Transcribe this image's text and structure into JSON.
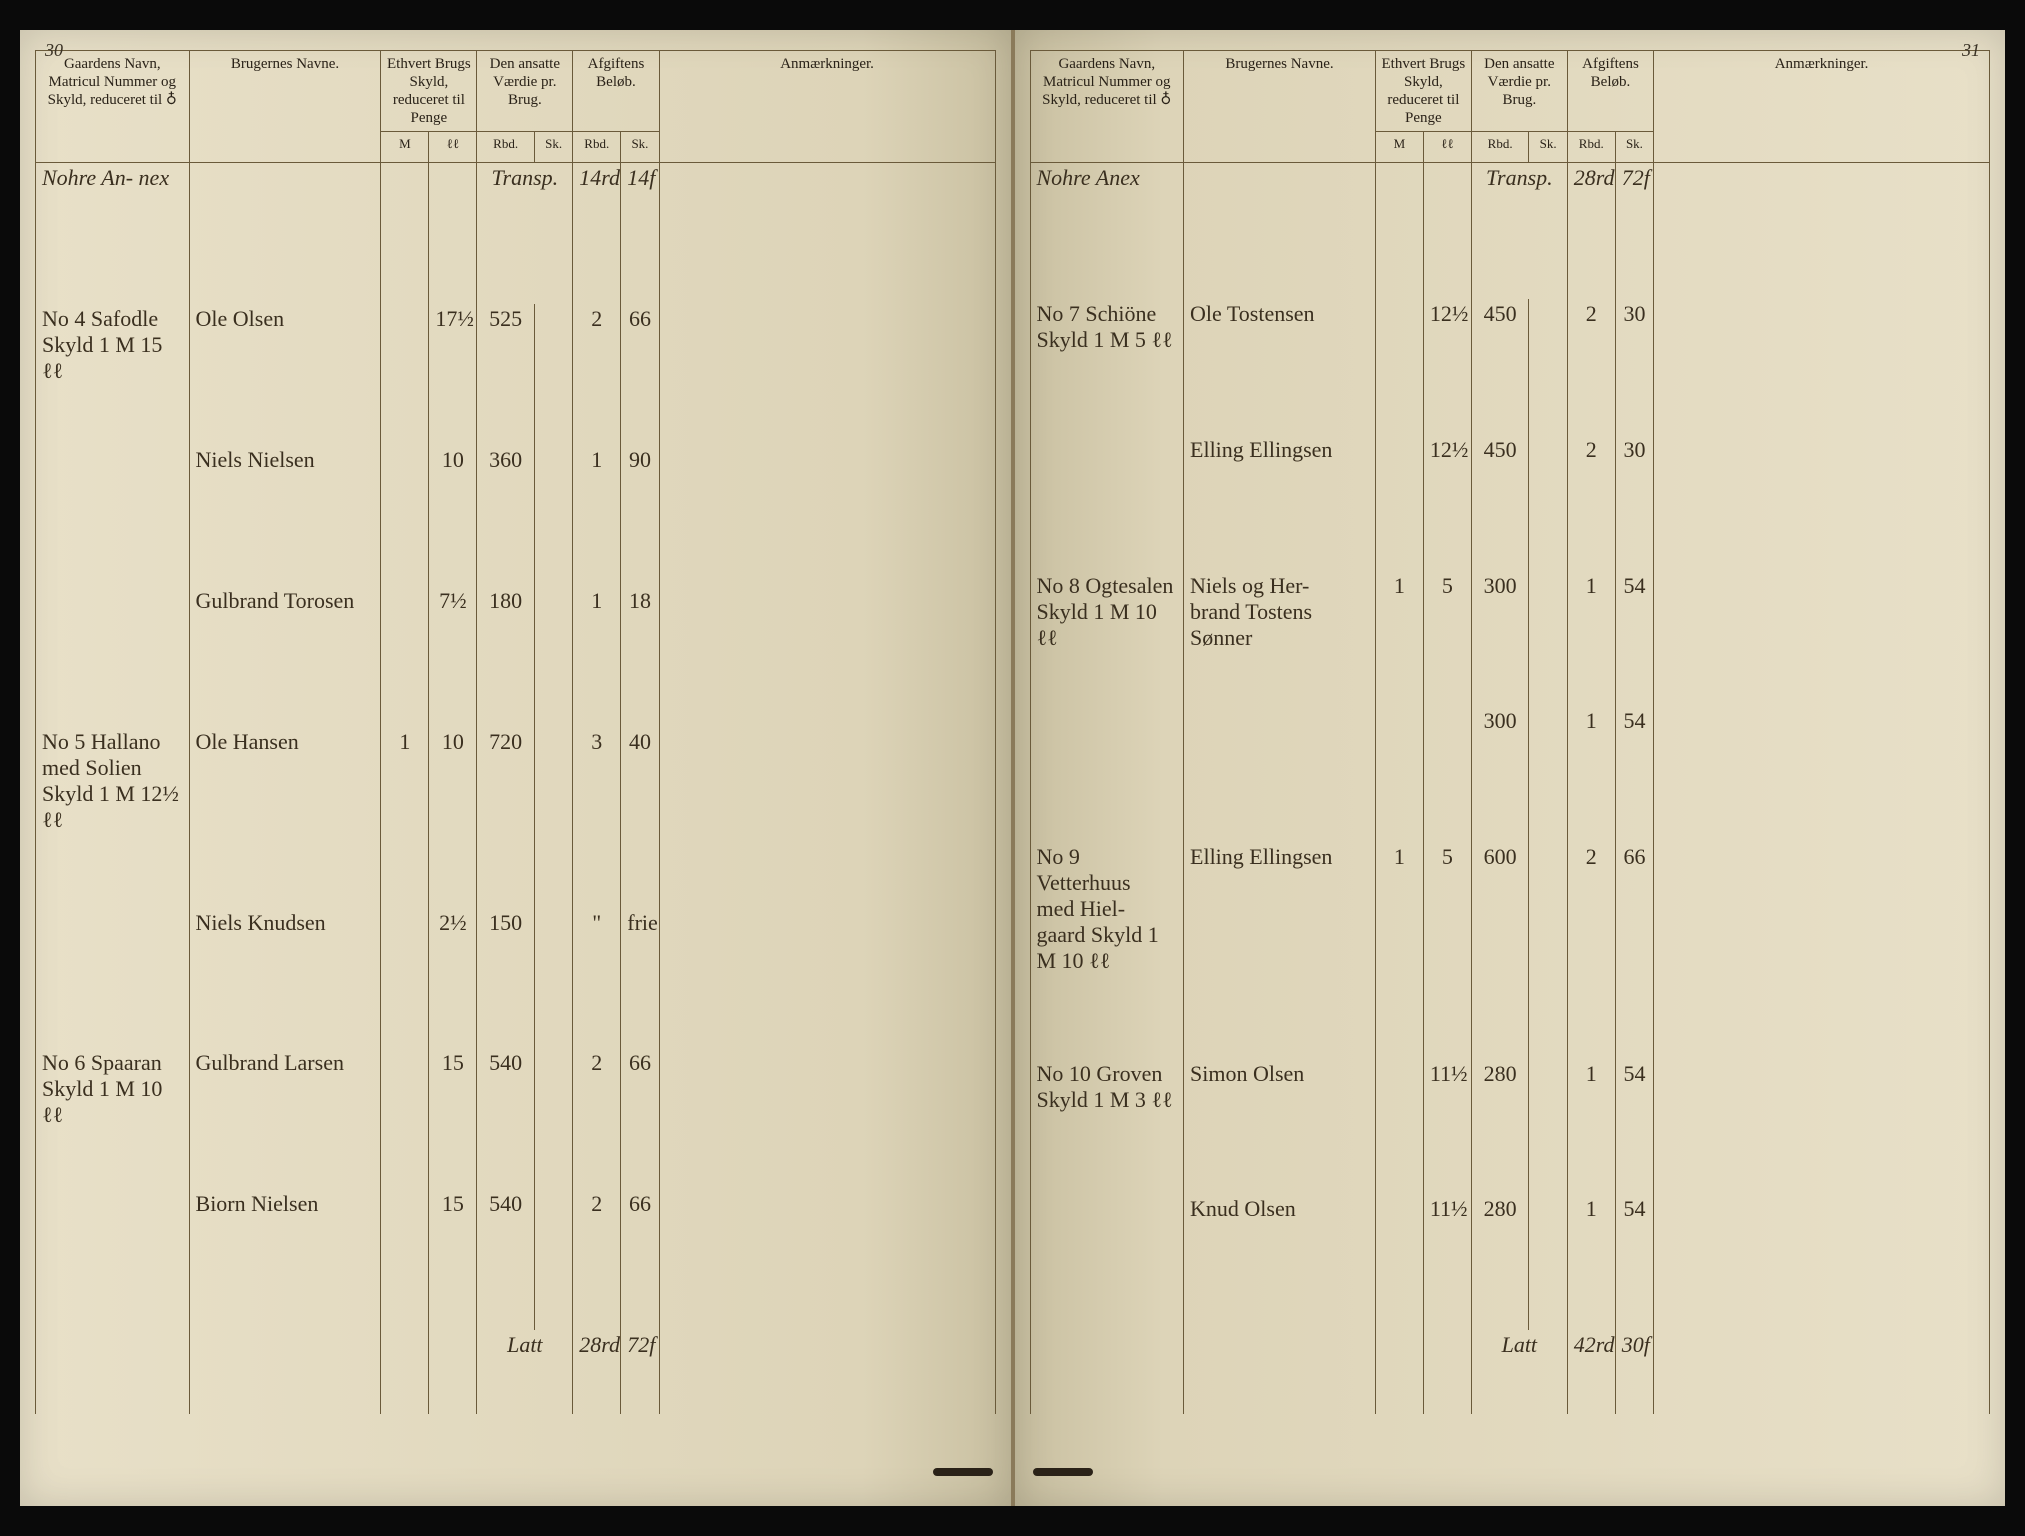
{
  "colors": {
    "paper": "#e8e0c8",
    "ink": "#3a2f1f",
    "rule": "#6a5a3a",
    "background": "#1a1a1a"
  },
  "left_page": {
    "number": "30",
    "headers": {
      "gaard": "Gaardens Navn, Matricul Nummer og Skyld, reduceret til ♁",
      "bruger": "Brugernes Navne.",
      "skyld": "Ethvert Brugs Skyld, reduceret til Penge",
      "vaerdie": "Den ansatte Værdie pr. Brug.",
      "afgift": "Afgiftens Beløb.",
      "anm": "Anmærkninger.",
      "sub_m": "M",
      "sub_ll": "ℓℓ",
      "sub_rbd": "Rbd.",
      "sub_sk": "Sk."
    },
    "annex": "Nohre An-\nnex",
    "transport_label": "Transp.",
    "transport_val1": "14rd",
    "transport_val2": "14f",
    "rows": [
      {
        "gaard": "No 4 Safodle\nSkyld 1 M 15 ℓℓ",
        "bruger": "Ole Olsen",
        "sk1": "",
        "sk2": "17½",
        "v1": "525",
        "v2": "",
        "a1": "2",
        "a2": "66",
        "anm": ""
      },
      {
        "gaard": "",
        "bruger": "Niels Nielsen",
        "sk1": "",
        "sk2": "10",
        "v1": "360",
        "v2": "",
        "a1": "1",
        "a2": "90",
        "anm": ""
      },
      {
        "gaard": "",
        "bruger": "Gulbrand Torosen",
        "sk1": "",
        "sk2": "7½",
        "v1": "180",
        "v2": "",
        "a1": "1",
        "a2": "18",
        "anm": ""
      },
      {
        "gaard": "No 5 Hallano\nmed Solien\nSkyld 1 M 12½ ℓℓ",
        "bruger": "Ole Hansen",
        "sk1": "1",
        "sk2": "10",
        "v1": "720",
        "v2": "",
        "a1": "3",
        "a2": "40",
        "anm": ""
      },
      {
        "gaard": "",
        "bruger": "Niels Knudsen",
        "sk1": "",
        "sk2": "2½",
        "v1": "150",
        "v2": "",
        "a1": "\"",
        "a2": "frie",
        "anm": ""
      },
      {
        "gaard": "No 6 Spaaran\nSkyld 1 M 10 ℓℓ",
        "bruger": "Gulbrand Larsen",
        "sk1": "",
        "sk2": "15",
        "v1": "540",
        "v2": "",
        "a1": "2",
        "a2": "66",
        "anm": ""
      },
      {
        "gaard": "",
        "bruger": "Biorn Nielsen",
        "sk1": "",
        "sk2": "15",
        "v1": "540",
        "v2": "",
        "a1": "2",
        "a2": "66",
        "anm": ""
      }
    ],
    "total_label": "Latt",
    "total_val1": "28rd",
    "total_val2": "72f"
  },
  "right_page": {
    "number": "31",
    "headers": {
      "gaard": "Gaardens Navn, Matricul Nummer og Skyld, reduceret til ♁",
      "bruger": "Brugernes Navne.",
      "skyld": "Ethvert Brugs Skyld, reduceret til Penge",
      "vaerdie": "Den ansatte Værdie pr. Brug.",
      "afgift": "Afgiftens Beløb.",
      "anm": "Anmærkninger.",
      "sub_m": "M",
      "sub_ll": "ℓℓ",
      "sub_rbd": "Rbd.",
      "sub_sk": "Sk."
    },
    "annex": "Nohre Anex",
    "transport_label": "Transp.",
    "transport_val1": "28rd",
    "transport_val2": "72f",
    "rows": [
      {
        "gaard": "No 7 Schiöne\nSkyld 1 M 5 ℓℓ",
        "bruger": "Ole Tostensen",
        "sk1": "",
        "sk2": "12½",
        "v1": "450",
        "v2": "",
        "a1": "2",
        "a2": "30",
        "anm": ""
      },
      {
        "gaard": "",
        "bruger": "Elling Ellingsen",
        "sk1": "",
        "sk2": "12½",
        "v1": "450",
        "v2": "",
        "a1": "2",
        "a2": "30",
        "anm": ""
      },
      {
        "gaard": "No 8 Ogtesalen\nSkyld 1 M 10 ℓℓ",
        "bruger": "Niels og Her-\nbrand Tostens\nSønner",
        "sk1": "1",
        "sk2": "5",
        "v1": "300",
        "v2": "",
        "a1": "1",
        "a2": "54",
        "anm": ""
      },
      {
        "gaard": "",
        "bruger": "",
        "sk1": "",
        "sk2": "",
        "v1": "300",
        "v2": "",
        "a1": "1",
        "a2": "54",
        "anm": ""
      },
      {
        "gaard": "No 9 Vetterhuus\nmed Hiel-\ngaard Skyld 1 M 10 ℓℓ",
        "bruger": "Elling Ellingsen",
        "sk1": "1",
        "sk2": "5",
        "v1": "600",
        "v2": "",
        "a1": "2",
        "a2": "66",
        "anm": ""
      },
      {
        "gaard": "No 10 Groven\nSkyld 1 M 3 ℓℓ",
        "bruger": "Simon Olsen",
        "sk1": "",
        "sk2": "11½",
        "v1": "280",
        "v2": "",
        "a1": "1",
        "a2": "54",
        "anm": ""
      },
      {
        "gaard": "",
        "bruger": "Knud Olsen",
        "sk1": "",
        "sk2": "11½",
        "v1": "280",
        "v2": "",
        "a1": "1",
        "a2": "54",
        "anm": ""
      }
    ],
    "total_label": "Latt",
    "total_val1": "42rd",
    "total_val2": "30f"
  }
}
